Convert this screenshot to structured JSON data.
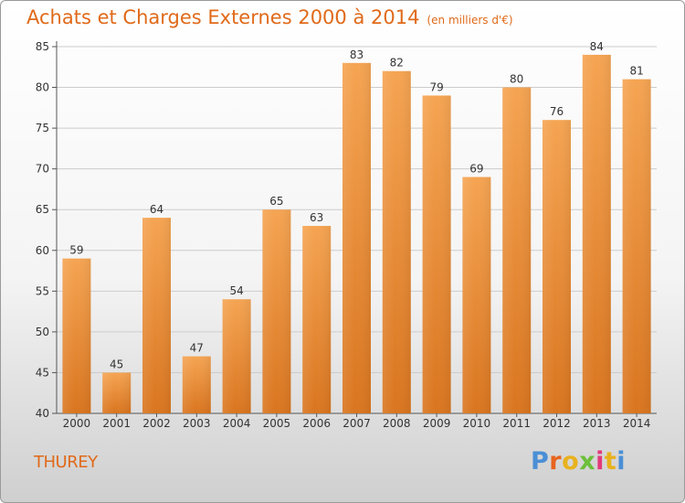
{
  "header": {
    "title": "Achats et Charges Externes 2000 à 2014",
    "subtitle": "(en milliers d'€)"
  },
  "place_name": "THUREY",
  "logo": {
    "text": "Proxiti",
    "letter_colors": [
      "#4a8fd6",
      "#e8641e",
      "#e8b21e",
      "#6cbf3a",
      "#e23a7a",
      "#e8b21e",
      "#4a8fd6"
    ]
  },
  "colors": {
    "title": "#e06a1a",
    "bar_light": "#f5a452",
    "bar_dark": "#d9751f",
    "grid": "#cccccc"
  },
  "chart_data": {
    "type": "bar",
    "title": "Achats et Charges Externes 2000 à 2014",
    "subtitle": "(en milliers d'€)",
    "categories": [
      "2000",
      "2001",
      "2002",
      "2003",
      "2004",
      "2005",
      "2006",
      "2007",
      "2008",
      "2009",
      "2010",
      "2011",
      "2012",
      "2013",
      "2014"
    ],
    "values": [
      59,
      45,
      64,
      47,
      54,
      65,
      63,
      83,
      82,
      79,
      69,
      80,
      76,
      84,
      81
    ],
    "ylim": [
      40,
      85
    ],
    "yticks": [
      40,
      45,
      50,
      55,
      60,
      65,
      70,
      75,
      80,
      85
    ],
    "grid": true,
    "xlabel": "",
    "ylabel": ""
  }
}
